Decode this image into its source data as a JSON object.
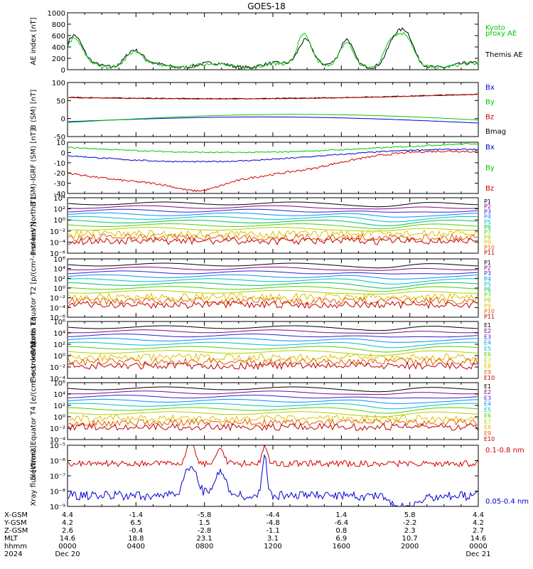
{
  "chart_data": {
    "type": "line",
    "title": "GOES-18",
    "panels": [
      {
        "id": "ae",
        "ylabel": "AE index [nT]",
        "ylim": [
          0,
          1000
        ],
        "log": false,
        "yticks": [
          "1000",
          "800",
          "600",
          "400",
          "200",
          "0"
        ],
        "series": [
          {
            "name": "Kyoto",
            "color": "#00c800"
          },
          {
            "name": "proxy AE",
            "color": "#00c800"
          },
          {
            "name": "Themis AE",
            "color": "#000000"
          }
        ]
      },
      {
        "id": "bsm",
        "ylabel": "B (SM) [nT]",
        "ylim": [
          -60,
          140
        ],
        "log": false,
        "yticks": [
          "100",
          "50",
          "0",
          "-50"
        ],
        "series": [
          {
            "name": "Bx",
            "color": "#0000d0"
          },
          {
            "name": "By",
            "color": "#00c800"
          },
          {
            "name": "Bz",
            "color": "#d00000"
          },
          {
            "name": "Bmag",
            "color": "#000000"
          }
        ]
      },
      {
        "id": "bigrf",
        "ylabel": "B (SM)-IGRF (SM) [nT]",
        "ylim": [
          -40,
          10
        ],
        "log": false,
        "yticks": [
          "10",
          "0",
          "-10",
          "-20",
          "-30",
          "-40"
        ],
        "series": [
          {
            "name": "Bx",
            "color": "#0000d0"
          },
          {
            "name": "By",
            "color": "#00c800"
          },
          {
            "name": "Bz",
            "color": "#d00000"
          }
        ]
      },
      {
        "id": "pt1",
        "ylabel": "Protons North T1",
        "log": true,
        "yticks": [
          "10⁴",
          "10²",
          "10⁰",
          "10⁻²",
          "10⁻⁴",
          "10⁻⁶"
        ],
        "channels": [
          "P1",
          "P2",
          "P3",
          "P4",
          "P5",
          "P6",
          "P7",
          "P8",
          "P9",
          "P10",
          "P11"
        ]
      },
      {
        "id": "pt2",
        "ylabel": "Protons Equator T2 [p/(cm²-s-sr-keV)]",
        "log": true,
        "yticks": [
          "10⁶",
          "10⁴",
          "10²",
          "10⁰",
          "10⁻²",
          "10⁻⁴",
          "10⁻⁶"
        ],
        "channels": [
          "P1",
          "P2",
          "P3",
          "P4",
          "P5",
          "P6",
          "P7",
          "P8",
          "P9",
          "P10",
          "P11"
        ]
      },
      {
        "id": "et3",
        "ylabel": "Electrons North T3",
        "log": true,
        "yticks": [
          "10⁶",
          "10⁴",
          "10²",
          "10⁰",
          "10⁻²",
          "10⁻⁴"
        ],
        "channels": [
          "E1",
          "E2",
          "E3",
          "E4",
          "E5",
          "E6",
          "E7",
          "E8",
          "E9",
          "E10"
        ]
      },
      {
        "id": "et4",
        "ylabel": "Electrons Equator T4 [e/(cm²-s-sr-keV)]",
        "log": true,
        "yticks": [
          "10⁶",
          "10⁴",
          "10²",
          "10⁰",
          "10⁻²",
          "10⁻⁴"
        ],
        "channels": [
          "E1",
          "E2",
          "E3",
          "E4",
          "E5",
          "E6",
          "E7",
          "E8",
          "E9",
          "E10"
        ]
      },
      {
        "id": "xray",
        "ylabel": "Xray flux [W/m2]",
        "log": true,
        "yticks": [
          "10⁻⁵",
          "10⁻⁶",
          "10⁻⁷",
          "10⁻⁸",
          "10⁻⁹"
        ],
        "series": [
          {
            "name": "0.1-0.8 nm",
            "color": "#d00000"
          },
          {
            "name": "0.05-0.4 nm",
            "color": "#0000d0"
          }
        ]
      }
    ],
    "x_axis": {
      "row_labels": [
        "X-GSM",
        "Y-GSM",
        "Z-GSM",
        "MLT",
        "hhmm",
        "2024"
      ],
      "columns": [
        {
          "values": [
            "4.4",
            "4.2",
            "2.6",
            "14.6",
            "0000",
            "Dec 20"
          ]
        },
        {
          "values": [
            "-1.4",
            "6.5",
            "-0.4",
            "18.8",
            "0400",
            ""
          ]
        },
        {
          "values": [
            "-5.8",
            "1.5",
            "-2.8",
            "23.1",
            "0800",
            ""
          ]
        },
        {
          "values": [
            "-4.4",
            "-4.8",
            "-1.1",
            "3.1",
            "1200",
            ""
          ]
        },
        {
          "values": [
            "1.4",
            "-6.4",
            "0.8",
            "6.9",
            "1600",
            ""
          ]
        },
        {
          "values": [
            "5.8",
            "-2.2",
            "2.3",
            "10.7",
            "2000",
            ""
          ]
        },
        {
          "values": [
            "4.4",
            "4.2",
            "2.7",
            "14.6",
            "0000",
            "Dec 21"
          ]
        }
      ]
    }
  },
  "colors": {
    "spectrum": [
      "#000000",
      "#8a008a",
      "#3020d0",
      "#0090ff",
      "#00c0c0",
      "#00c060",
      "#50d000",
      "#b0d000",
      "#e0c000",
      "#e06000",
      "#c00000"
    ]
  }
}
